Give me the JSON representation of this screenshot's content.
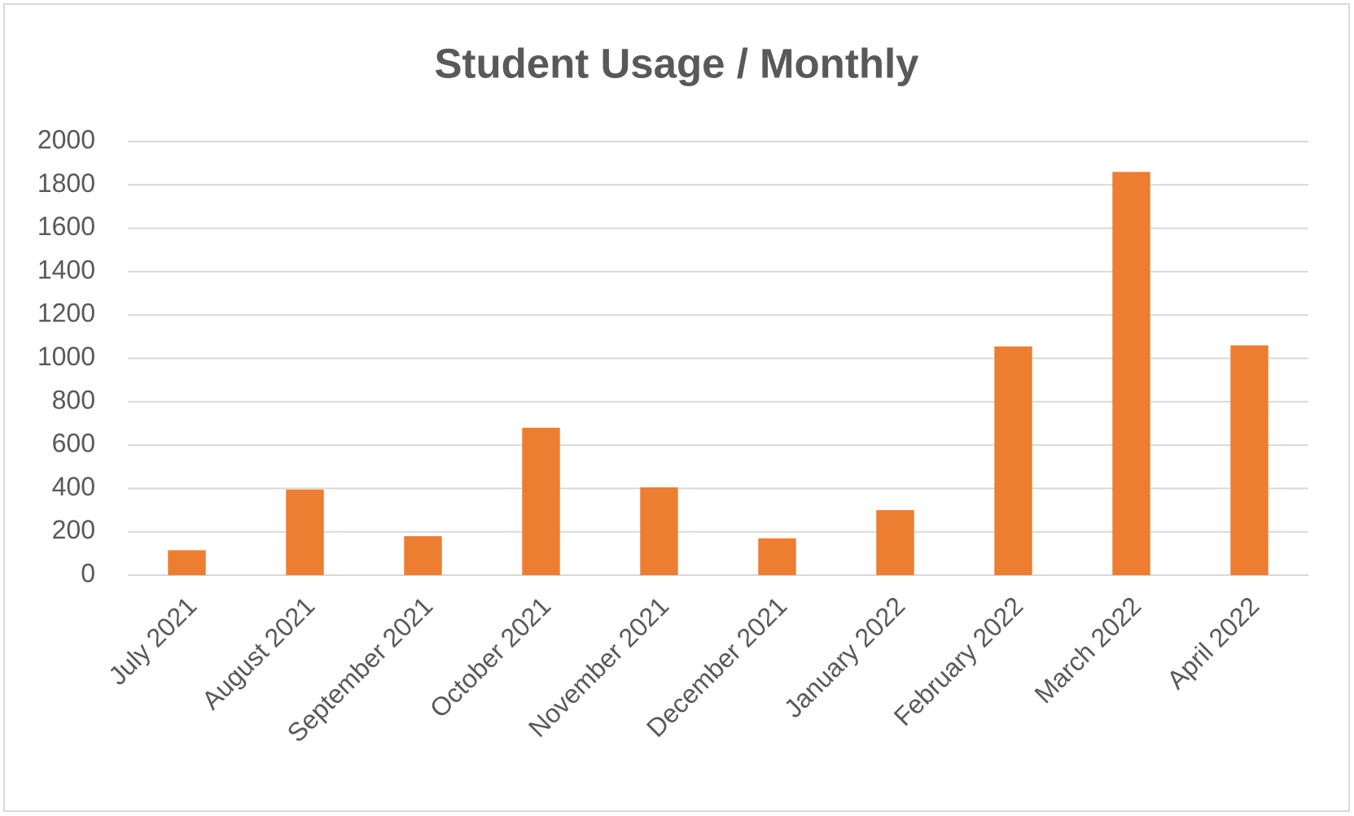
{
  "chart_data": {
    "type": "bar",
    "title": "Student Usage / Monthly",
    "categories": [
      "July 2021",
      "August 2021",
      "September 2021",
      "October 2021",
      "November 2021",
      "December 2021",
      "January 2022",
      "February 2022",
      "March 2022",
      "April 2022"
    ],
    "values": [
      115,
      395,
      180,
      680,
      405,
      170,
      300,
      1055,
      1860,
      1060
    ],
    "color": "#ed7d31",
    "ylim": [
      0,
      2000
    ],
    "yticks": [
      0,
      200,
      400,
      600,
      800,
      1000,
      1200,
      1400,
      1600,
      1800,
      2000
    ],
    "grid": true
  }
}
